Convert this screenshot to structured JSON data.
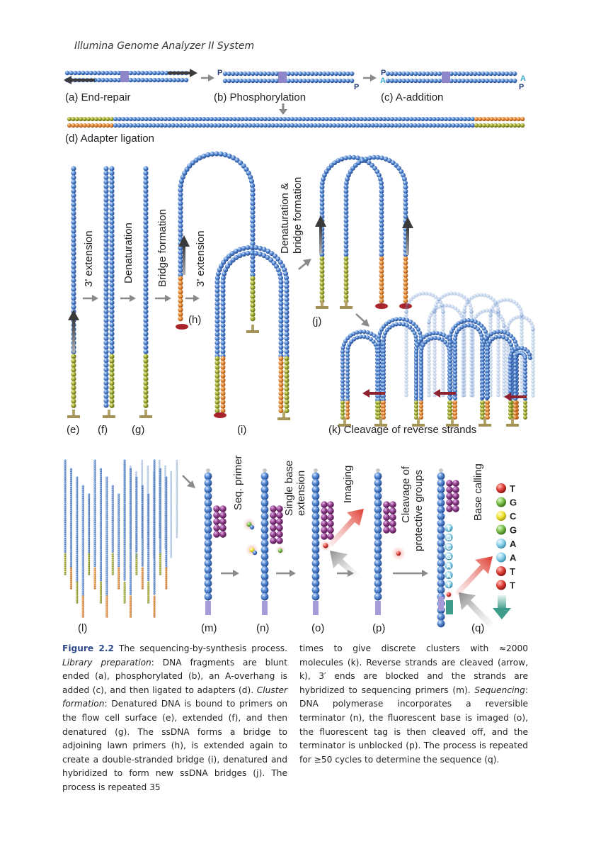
{
  "header": "Illumina Genome Analyzer II System",
  "top_labels": {
    "a": "(a) End-repair",
    "b": "(b) Phosphorylation",
    "c": "(c) A-addition",
    "d": "(d) Adapter ligation"
  },
  "end_marks": {
    "p": "P",
    "a": "A"
  },
  "cluster_labels": {
    "e": "(e)",
    "f": "(f)",
    "g": "(g)",
    "h": "(h)",
    "i": "(i)",
    "j": "(j)",
    "k": "(k) Cleavage of reverse strands"
  },
  "steps": {
    "extension_1": "3' extension",
    "denaturation": "Denaturation",
    "bridge_formation": "Bridge formation",
    "extension_2": "3' extension",
    "denaturation_bridge_1": "Denaturation &",
    "denaturation_bridge_2": "bridge formation"
  },
  "seq_labels": {
    "l": "(l)",
    "m": "(m)",
    "n": "(n)",
    "o": "(o)",
    "p": "(p)",
    "q": "(q)"
  },
  "seq_steps": {
    "seq_primer": "Seq. primer",
    "single_base_1": "Single base",
    "single_base_2": "extension",
    "imaging": "Imaging",
    "cleavage_1": "Cleavage of",
    "cleavage_2": "protective groups",
    "base_calling": "Base calling"
  },
  "called_bases": [
    "T",
    "G",
    "C",
    "G",
    "A",
    "A",
    "T",
    "T"
  ],
  "strand_letters": [
    "T",
    "G",
    "C",
    "G",
    "A",
    "A",
    "T"
  ],
  "colors": {
    "bead": "#4a7fc9",
    "adapter_orange": "#e08a3a",
    "adapter_green": "#9aa832",
    "base_T": "#e0413a",
    "base_G": "#7cc04a",
    "base_C": "#f2e533",
    "base_A": "#8fd3ec",
    "primer": "#8b3a8f",
    "anchor": "#b5a46a",
    "tail": "#a79ad8"
  },
  "caption": {
    "fig_num": "Figure 2.2",
    "t1": " The sequencing-by-synthesis process. ",
    "i1": "Library preparation",
    "t2": ": DNA fragments are blunt ended (a), phosphorylated (b), an A-overhang is added (c), and then ligated to adapters (d). ",
    "i2": "Cluster formation",
    "t3": ": Denatured DNA is bound to primers on the flow cell surface (e), extended (f), and then denatured (g). The ssDNA forms a bridge to adjoining lawn primers (h), is extended again to create a double-stranded bridge (i), denatured and hybridized to form new ssDNA bridges (j). The process is repeated 35",
    "t4": "times to give discrete clusters with ≈2000 molecules (k). Reverse strands are cleaved (arrow, k), 3′ ends are blocked and the strands are hybridized to sequencing primers (m). ",
    "i3": "Sequencing",
    "t5": ": DNA polymerase incorporates a reversible terminator (n), the fluorescent base is imaged (o), the fluorescent tag is then cleaved off, and the terminator is unblocked (p). The process is repeated for ≥50 cycles to determine the sequence (q)."
  }
}
